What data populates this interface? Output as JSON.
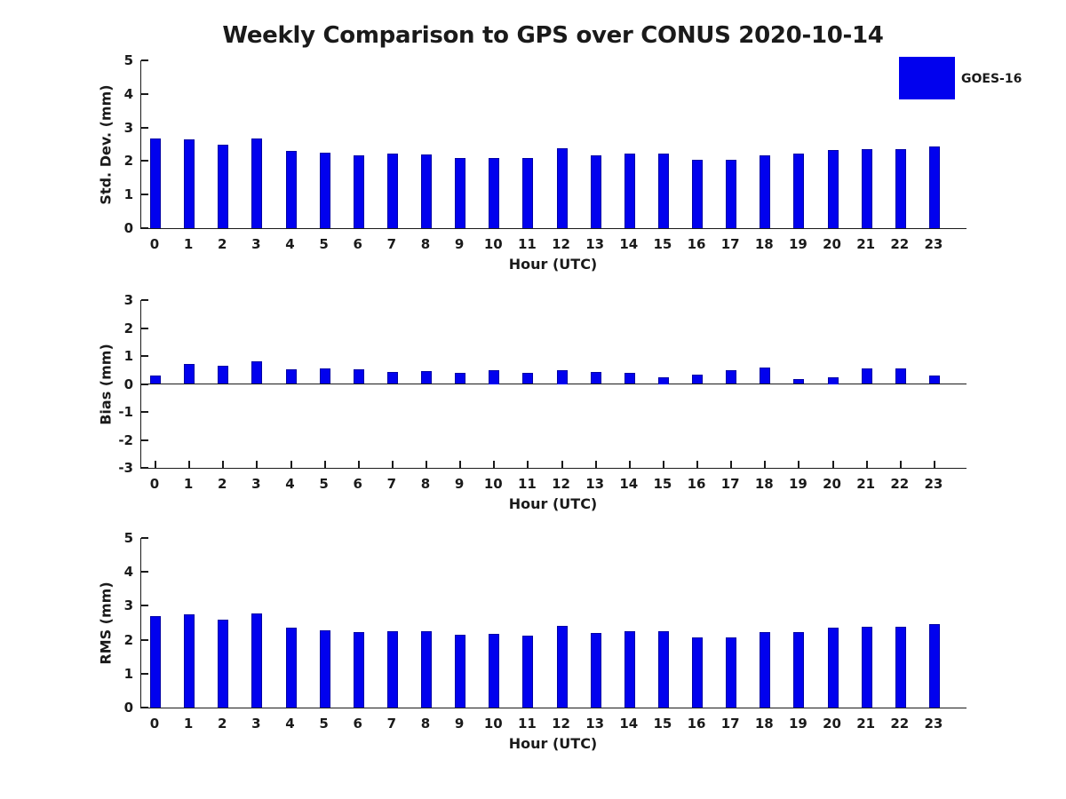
{
  "figure": {
    "legend": {
      "label": "GOES-16",
      "swatch_color": "#0101ee",
      "position": "upper right"
    },
    "colors": {
      "bar_fill": "#0101ee",
      "bar_edge": "#0000a6",
      "axis": "#1a1a1a",
      "background": "#ffffff"
    }
  },
  "chart_data": [
    {
      "type": "bar",
      "title": "Weekly Comparison to GPS over CONUS 2020-10-14",
      "ylabel": "Std. Dev. (mm)",
      "xlabel": "Hour (UTC)",
      "categories": [
        "0",
        "1",
        "2",
        "3",
        "4",
        "5",
        "6",
        "7",
        "8",
        "9",
        "10",
        "11",
        "12",
        "13",
        "14",
        "15",
        "16",
        "17",
        "18",
        "19",
        "20",
        "21",
        "22",
        "23"
      ],
      "values": [
        2.68,
        2.65,
        2.49,
        2.68,
        2.31,
        2.24,
        2.18,
        2.23,
        2.2,
        2.08,
        2.1,
        2.09,
        2.37,
        2.17,
        2.23,
        2.22,
        2.05,
        2.04,
        2.17,
        2.23,
        2.33,
        2.36,
        2.36,
        2.44
      ],
      "series_name": "GOES-16",
      "ylim": [
        0,
        5
      ],
      "yticks": [
        0,
        1,
        2,
        3,
        4,
        5
      ],
      "grid": false,
      "zero_line": false
    },
    {
      "type": "bar",
      "title": "",
      "ylabel": "Bias (mm)",
      "xlabel": "Hour (UTC)",
      "categories": [
        "0",
        "1",
        "2",
        "3",
        "4",
        "5",
        "6",
        "7",
        "8",
        "9",
        "10",
        "11",
        "12",
        "13",
        "14",
        "15",
        "16",
        "17",
        "18",
        "19",
        "20",
        "21",
        "22",
        "23"
      ],
      "values": [
        0.29,
        0.72,
        0.66,
        0.81,
        0.53,
        0.56,
        0.52,
        0.44,
        0.47,
        0.4,
        0.5,
        0.4,
        0.5,
        0.44,
        0.4,
        0.25,
        0.32,
        0.48,
        0.58,
        0.19,
        0.25,
        0.55,
        0.55,
        0.3
      ],
      "series_name": "GOES-16",
      "ylim": [
        -3,
        3
      ],
      "yticks": [
        -3,
        -2,
        -1,
        0,
        1,
        2,
        3
      ],
      "grid": false,
      "zero_line": true
    },
    {
      "type": "bar",
      "title": "",
      "ylabel": "RMS (mm)",
      "xlabel": "Hour (UTC)",
      "categories": [
        "0",
        "1",
        "2",
        "3",
        "4",
        "5",
        "6",
        "7",
        "8",
        "9",
        "10",
        "11",
        "12",
        "13",
        "14",
        "15",
        "16",
        "17",
        "18",
        "19",
        "20",
        "21",
        "22",
        "23"
      ],
      "values": [
        2.7,
        2.74,
        2.59,
        2.77,
        2.36,
        2.29,
        2.22,
        2.26,
        2.25,
        2.14,
        2.17,
        2.11,
        2.41,
        2.21,
        2.24,
        2.24,
        2.07,
        2.07,
        2.22,
        2.23,
        2.35,
        2.39,
        2.39,
        2.45
      ],
      "series_name": "GOES-16",
      "ylim": [
        0,
        5
      ],
      "yticks": [
        0,
        1,
        2,
        3,
        4,
        5
      ],
      "grid": false,
      "zero_line": false
    }
  ]
}
